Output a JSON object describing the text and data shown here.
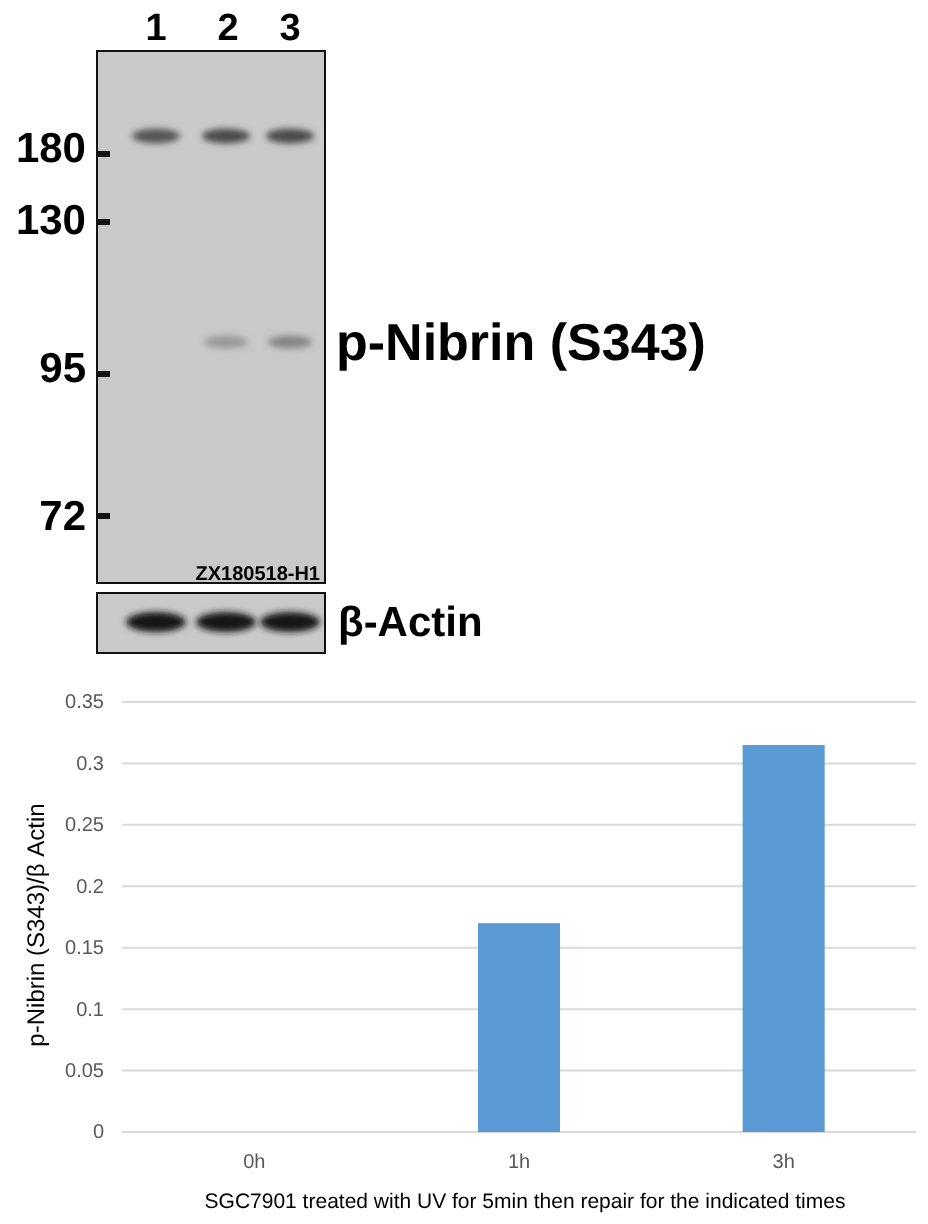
{
  "chart_data": {
    "type": "bar",
    "categories": [
      "0h",
      "1h",
      "3h"
    ],
    "values": [
      0,
      0.17,
      0.315
    ],
    "color": "#5b9bd5",
    "ylim": [
      0,
      0.35
    ],
    "yticks": [
      0,
      0.05,
      0.1,
      0.15,
      0.2,
      0.25,
      0.3,
      0.35
    ],
    "grid": "y",
    "xlabel": "SGC7901 treated with UV for 5min then repair for the indicated times",
    "ylabel": "p-Nibrin (S343)/β Actin",
    "annotations": [
      "1",
      "2",
      "3",
      "180",
      "130",
      "95",
      "72",
      "ZX180518-H1",
      "p-Nibrin (S343)",
      "β-Actin"
    ]
  }
}
